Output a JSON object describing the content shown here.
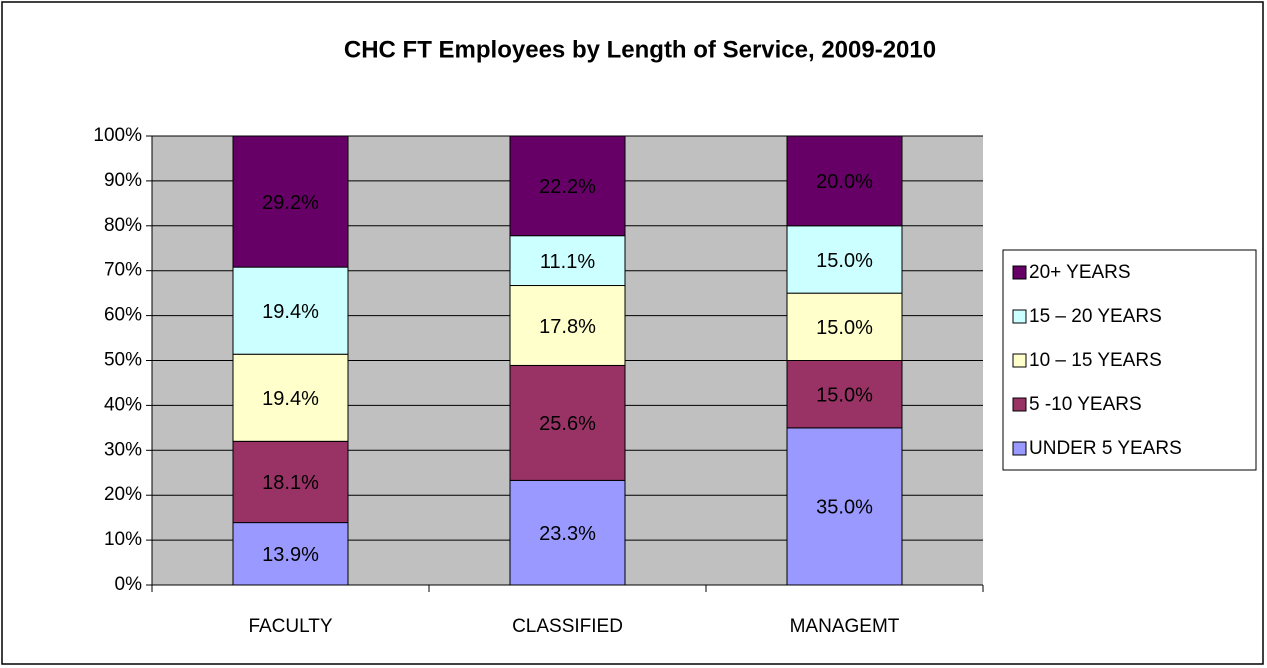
{
  "chart_data": {
    "type": "stacked_bar",
    "title": "CHC FT Employees by Length of Service, 2009-2010",
    "categories": [
      "FACULTY",
      "CLASSIFIED",
      "MANAGEMT"
    ],
    "series": [
      {
        "name": "UNDER 5 YEARS",
        "color": "#9999ff",
        "values": [
          13.9,
          23.3,
          35.0
        ],
        "value_labels": [
          "13.9%",
          "23.3%",
          "35.0%"
        ]
      },
      {
        "name": "5 -10 YEARS",
        "color": "#993366",
        "values": [
          18.1,
          25.6,
          15.0
        ],
        "value_labels": [
          "18.1%",
          "25.6%",
          "15.0%"
        ]
      },
      {
        "name": "10 – 15 YEARS",
        "color": "#ffffcc",
        "values": [
          19.4,
          17.8,
          15.0
        ],
        "value_labels": [
          "19.4%",
          "17.8%",
          "15.0%"
        ]
      },
      {
        "name": "15 – 20 YEARS",
        "color": "#ccffff",
        "values": [
          19.4,
          11.1,
          15.0
        ],
        "value_labels": [
          "19.4%",
          "11.1%",
          "15.0%"
        ]
      },
      {
        "name": "20+ YEARS",
        "color": "#660066",
        "values": [
          29.2,
          22.2,
          20.0
        ],
        "value_labels": [
          "29.2%",
          "22.2%",
          "20.0%"
        ]
      }
    ],
    "ylim": [
      0,
      100
    ],
    "yticks": [
      {
        "value": 0,
        "label": "0%"
      },
      {
        "value": 10,
        "label": "10%"
      },
      {
        "value": 20,
        "label": "20%"
      },
      {
        "value": 30,
        "label": "30%"
      },
      {
        "value": 40,
        "label": "40%"
      },
      {
        "value": 50,
        "label": "50%"
      },
      {
        "value": 60,
        "label": "60%"
      },
      {
        "value": 70,
        "label": "70%"
      },
      {
        "value": 80,
        "label": "80%"
      },
      {
        "value": 90,
        "label": "90%"
      },
      {
        "value": 100,
        "label": "100%"
      }
    ],
    "grid": true,
    "plot_background": "#c0c0c0",
    "legend": "right"
  }
}
